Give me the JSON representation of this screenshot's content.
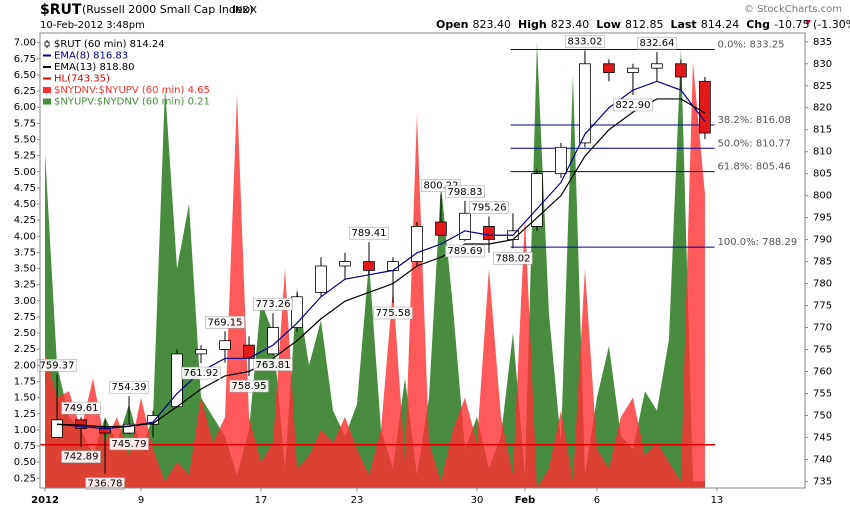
{
  "chart_data": {
    "type": "candlestick",
    "title": "$RUT",
    "subtitle": "(Russell 2000 Small Cap Index)",
    "exchange": "INDX",
    "date": "10-Feb-2012 3:48pm",
    "credit": "© StockCharts.com",
    "quote": [
      {
        "label": "Open",
        "value": "823.40"
      },
      {
        "label": "High",
        "value": "823.40"
      },
      {
        "label": "Low",
        "value": "812.85"
      },
      {
        "label": "Last",
        "value": "814.24"
      },
      {
        "label": "Chg",
        "value": "-10.75 (-1.30%)"
      }
    ],
    "xlim": [
      -0.21,
      31.67
    ],
    "xticks": [
      {
        "value": 0,
        "label": "2012"
      },
      {
        "value": 4,
        "label": "9"
      },
      {
        "value": 9,
        "label": "17"
      },
      {
        "value": 13,
        "label": "23"
      },
      {
        "value": 18,
        "label": "30"
      },
      {
        "value": 20,
        "label": "Feb"
      },
      {
        "value": 23,
        "label": "6"
      },
      {
        "value": 28,
        "label": "13"
      }
    ],
    "ylim": [
      0.1,
      7.15
    ],
    "yticks": [
      0.25,
      {
        "value": 0.5,
        "label": "0.50"
      },
      0.75,
      {
        "value": 1,
        "label": "1.00"
      },
      1.25,
      {
        "value": 1.5,
        "label": "1.50"
      },
      1.75,
      {
        "value": 2,
        "label": "2.00"
      },
      2.25,
      {
        "value": 2.5,
        "label": "2.50"
      },
      2.75,
      {
        "value": 3,
        "label": "3.00"
      },
      3.25,
      {
        "value": 3.5,
        "label": "3.50"
      },
      3.75,
      {
        "value": 4,
        "label": "4.00"
      },
      4.25,
      {
        "value": 4.5,
        "label": "4.50"
      },
      4.75,
      {
        "value": 5,
        "label": "5.00"
      },
      5.25,
      {
        "value": 5.5,
        "label": "5.50"
      },
      5.75,
      {
        "value": 6,
        "label": "6.00"
      },
      6.25,
      {
        "value": 6.5,
        "label": "6.50"
      },
      6.75,
      {
        "value": 7,
        "label": "7.00"
      }
    ],
    "y2lim": [
      733.5,
      837
    ],
    "y2ticks": [
      735,
      740,
      745,
      750,
      755,
      760,
      765,
      770,
      775,
      780,
      785,
      790,
      795,
      800,
      805,
      810,
      815,
      820,
      825,
      830,
      835
    ],
    "grid": false,
    "candles": {
      "name": "$RUT (60 min) 814.24",
      "up_color": "#ffffff",
      "down_color": "#e31a1c",
      "x": [
        0.5,
        1.5,
        2.5,
        3.5,
        4.5,
        5.5,
        6.5,
        7.5,
        8.5,
        9.5,
        10.5,
        11.5,
        12.5,
        13.5,
        14.5,
        15.5,
        16.5,
        17.5,
        18.5,
        19.5,
        20.5,
        21.5,
        22.5,
        23.5,
        24.5,
        25.5,
        26.5,
        27.5
      ],
      "open": [
        745,
        749,
        747,
        746,
        748,
        752,
        764,
        765,
        766,
        764,
        770,
        778,
        784,
        785,
        783,
        785,
        794,
        790,
        793,
        790,
        793,
        805,
        812,
        830,
        828,
        829,
        830,
        826
      ],
      "high": [
        759.37,
        749.61,
        749,
        754.39,
        751,
        765,
        766,
        769.15,
        768,
        773.26,
        778,
        786,
        787,
        789.41,
        786,
        794,
        800.22,
        798.83,
        795.26,
        796,
        806,
        812,
        833.02,
        831,
        830,
        832.64,
        831,
        827
      ],
      "low": [
        745,
        742.89,
        736.78,
        745.79,
        745,
        752,
        761.92,
        762,
        758.95,
        763.81,
        769,
        777,
        781,
        782,
        775.58,
        784,
        791,
        789.69,
        787,
        788.02,
        792,
        804,
        811,
        826,
        822.9,
        826,
        824,
        812.85
      ],
      "close": [
        749,
        747,
        746,
        748,
        750,
        764,
        765,
        767,
        763,
        770,
        777,
        784,
        785,
        783,
        785,
        793,
        791,
        796,
        790,
        792,
        805,
        811,
        830,
        828,
        829,
        830,
        827,
        814.24
      ]
    },
    "series": [
      {
        "name": "EMA(8) 816.83",
        "type": "line",
        "axis": "y2",
        "color": "#00008b",
        "values": [
          748,
          747.5,
          747,
          747.5,
          748.5,
          755,
          760,
          763,
          763,
          766,
          771,
          777,
          781,
          782,
          783,
          787,
          789,
          792,
          791,
          791,
          797,
          803,
          814,
          820,
          824,
          826,
          824,
          816.83
        ]
      },
      {
        "name": "EMA(13) 818.80",
        "type": "line",
        "axis": "y2",
        "color": "#000000",
        "values": [
          748,
          747.8,
          747.4,
          747.6,
          748.2,
          752,
          756,
          759,
          760,
          763,
          767,
          772,
          776,
          778,
          780,
          784,
          786,
          789,
          789,
          790,
          795,
          800,
          809,
          815,
          819,
          822,
          822,
          818.8
        ]
      },
      {
        "name": "$NYUPV:$NYDNV (60 min) 0.21",
        "type": "area",
        "axis": "y",
        "color": "#4a8c3f",
        "x": [
          0,
          0.5,
          1,
          1.5,
          2,
          2.5,
          3,
          3.5,
          4,
          4.5,
          5,
          5.5,
          6,
          6.5,
          7,
          7.5,
          8,
          8.5,
          9,
          9.5,
          10,
          10.5,
          11,
          11.5,
          12,
          12.5,
          13,
          13.5,
          14,
          14.5,
          15,
          15.5,
          16,
          16.5,
          17,
          17.5,
          18,
          18.5,
          19,
          19.5,
          20,
          20.5,
          21,
          21.5,
          22,
          22.5,
          23,
          23.5,
          24,
          24.5,
          25,
          25.5,
          26,
          26.5,
          27,
          27.5
        ],
        "values": [
          5.3,
          2.0,
          1.2,
          1.0,
          0.6,
          1.2,
          0.8,
          1.4,
          0.7,
          1.2,
          6.3,
          3.5,
          4.5,
          1.5,
          1.2,
          0.9,
          0.3,
          1.0,
          3.0,
          2.5,
          0.4,
          3.2,
          2.0,
          2.7,
          1.3,
          0.9,
          1.4,
          3.6,
          1.0,
          0.4,
          1.8,
          0.3,
          1.5,
          4.8,
          2.9,
          0.7,
          1.2,
          0.4,
          0.9,
          2.5,
          0.3,
          7.0,
          2.8,
          0.8,
          6.5,
          0.3,
          1.5,
          2.3,
          0.9,
          0.7,
          1.6,
          1.3,
          2.4,
          6.9,
          0.2,
          0.21
        ]
      },
      {
        "name": "$NYDNV:$NYUPV (60 min) 4.65",
        "type": "area",
        "axis": "y",
        "color": "#ff3030",
        "x": [
          0,
          0.5,
          1,
          1.5,
          2,
          2.5,
          3,
          3.5,
          4,
          4.5,
          5,
          5.5,
          6,
          6.5,
          7,
          7.5,
          8,
          8.5,
          9,
          9.5,
          10,
          10.5,
          11,
          11.5,
          12,
          12.5,
          13,
          13.5,
          14,
          14.5,
          15,
          15.5,
          16,
          16.5,
          17,
          17.5,
          18,
          18.5,
          19,
          19.5,
          20,
          20.5,
          21,
          21.5,
          22,
          22.5,
          23,
          23.5,
          24,
          24.5,
          25,
          25.5,
          26,
          26.5,
          27,
          27.5
        ],
        "values": [
          2.2,
          1.5,
          1.6,
          1.0,
          1.8,
          0.8,
          1.2,
          0.6,
          1.5,
          0.7,
          0.2,
          0.5,
          0.3,
          1.5,
          0.8,
          1.2,
          6.2,
          1.2,
          0.5,
          0.8,
          3.5,
          0.4,
          0.6,
          1.0,
          0.8,
          1.2,
          0.7,
          0.3,
          1.0,
          3.2,
          0.5,
          5.9,
          0.8,
          0.2,
          1.0,
          1.5,
          0.8,
          3.5,
          1.2,
          0.3,
          4.3,
          0.1,
          0.4,
          1.3,
          0.2,
          3.5,
          0.7,
          0.4,
          1.2,
          1.5,
          0.6,
          0.8,
          0.5,
          0.2,
          6.7,
          4.65
        ]
      }
    ],
    "hlines": [
      {
        "name": "HL(743.35)",
        "value": 743.35,
        "color": "#e00000"
      }
    ],
    "fibonacci": {
      "x_start": 19.4,
      "x_end": 27.9,
      "color": "#00008b",
      "levels": [
        {
          "value": 833.25,
          "label": "0.0%: 833.25"
        },
        {
          "value": 816.08,
          "label": "38.2%: 816.08"
        },
        {
          "value": 810.77,
          "label": "50.0%: 810.77"
        },
        {
          "value": 805.46,
          "label": "61.8%: 805.46"
        },
        {
          "value": 788.29,
          "label": "100.0%: 788.29"
        }
      ]
    },
    "annotations": [
      {
        "x": 0.5,
        "value": 759.37
      },
      {
        "x": 1.5,
        "value": 742.89
      },
      {
        "x": 1.5,
        "value": 749.61
      },
      {
        "x": 2.5,
        "value": 736.78
      },
      {
        "x": 3.5,
        "value": 754.39
      },
      {
        "x": 3.5,
        "value": 745.79
      },
      {
        "x": 6.5,
        "value": 761.92
      },
      {
        "x": 7.5,
        "value": 769.15
      },
      {
        "x": 8.5,
        "value": 758.95
      },
      {
        "x": 9.5,
        "value": 773.26
      },
      {
        "x": 9.5,
        "value": 763.81
      },
      {
        "x": 13.5,
        "value": 789.41
      },
      {
        "x": 14.5,
        "value": 775.58
      },
      {
        "x": 16.5,
        "value": 800.22
      },
      {
        "x": 17.5,
        "value": 789.69
      },
      {
        "x": 17.5,
        "value": 798.83
      },
      {
        "x": 18.5,
        "value": 795.26
      },
      {
        "x": 19.5,
        "value": 788.02
      },
      {
        "x": 22.5,
        "value": 833.02
      },
      {
        "x": 24.5,
        "value": 822.9,
        "label": "822.90"
      },
      {
        "x": 25.5,
        "value": 832.64
      }
    ]
  }
}
